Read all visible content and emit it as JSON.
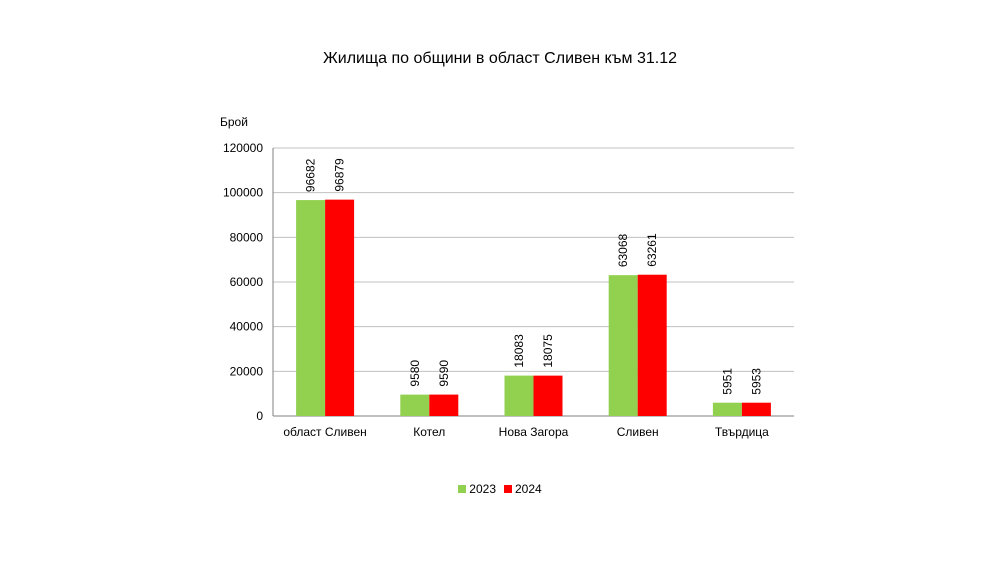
{
  "chart_data": {
    "type": "bar",
    "title": "Жилища по общини в област Сливен към 31.12",
    "ylabel": "Брой",
    "xlabel": "",
    "ylim": [
      0,
      120000
    ],
    "yticks": [
      0,
      20000,
      40000,
      60000,
      80000,
      100000,
      120000
    ],
    "grid": true,
    "legend_position": "bottom",
    "categories": [
      "област Сливен",
      "Котел",
      "Нова Загора",
      "Сливен",
      "Твърдица"
    ],
    "series": [
      {
        "name": "2023",
        "color": "#92D050",
        "values": [
          96682,
          9580,
          18083,
          63068,
          5951
        ]
      },
      {
        "name": "2024",
        "color": "#FF0000",
        "values": [
          96879,
          9590,
          18075,
          63261,
          5953
        ]
      }
    ]
  }
}
